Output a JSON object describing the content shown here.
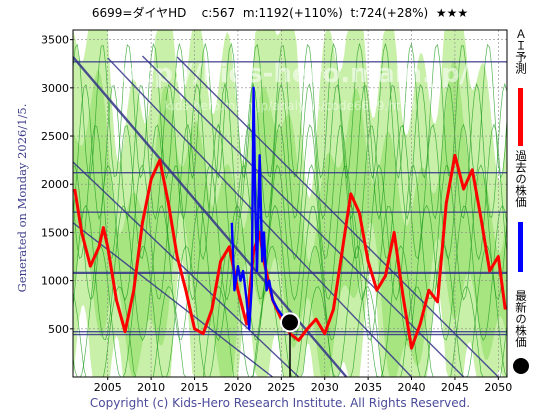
{
  "header": {
    "code_name": "6699=ダイヤHD",
    "c": "c:567",
    "m": "m:1192(+110%)",
    "t": "t:724(+28%)",
    "stars": "★★★"
  },
  "side_label": "Generated on Monday 2026/1/5.",
  "copyright": "Copyright (c) Kids-Hero Research Institute. All Rights Reserved.",
  "watermark": {
    "line1": "http://kids-hero.main.jp/",
    "line2": "kids-hero.main.jp/analysis/code6699.html"
  },
  "legend": [
    {
      "label": "ＡＩ予測",
      "color": "#ff0000"
    },
    {
      "label": "過去の株価",
      "color": "#0000ff"
    },
    {
      "label": "最新の株価",
      "color": "#000000"
    }
  ],
  "colors": {
    "forecast": "#ff0000",
    "past": "#0000ff",
    "latest": "#000000",
    "band_light": "#c8f0a8",
    "band_mid": "#98e070",
    "band_line": "#1a9a1a",
    "trend": "#333388"
  },
  "chart_data": {
    "type": "line",
    "xlim": [
      2001,
      2051
    ],
    "ylim": [
      0,
      3600
    ],
    "x_ticks": [
      "2005",
      "2010",
      "2015",
      "2020",
      "2025",
      "2030",
      "2035",
      "2040",
      "2045",
      "2050"
    ],
    "y_ticks": [
      "500",
      "1000",
      "1500",
      "2000",
      "2500",
      "3000",
      "3500"
    ],
    "grid": true,
    "legend_position": "right",
    "horizontal_levels": [
      3270,
      2120,
      1710,
      1080,
      470,
      440
    ],
    "diagonal_trendlines": [
      {
        "from": [
          2001,
          3320
        ],
        "to": [
          2032.5,
          0
        ]
      },
      {
        "from": [
          2005,
          3310
        ],
        "to": [
          2040,
          0
        ]
      },
      {
        "from": [
          2009,
          3330
        ],
        "to": [
          2046,
          0
        ]
      },
      {
        "from": [
          2013,
          3320
        ],
        "to": [
          2050,
          0
        ]
      },
      {
        "from": [
          2001,
          2230
        ],
        "to": [
          2027,
          0
        ]
      },
      {
        "from": [
          2001,
          1600
        ],
        "to": [
          2024,
          0
        ]
      }
    ],
    "series": [
      {
        "name": "ＡＩ予測",
        "x": [
          2001.2,
          2002,
          2003,
          2004,
          2004.5,
          2005,
          2006,
          2007,
          2008,
          2009,
          2010,
          2011,
          2012,
          2013,
          2014,
          2015,
          2016,
          2017,
          2018,
          2019,
          2020,
          2021,
          2021.8,
          2022.5,
          2023,
          2024,
          2025,
          2026,
          2027,
          2028,
          2029,
          2030,
          2031,
          2032,
          2033,
          2034,
          2035,
          2036,
          2037,
          2038,
          2039,
          2040,
          2041,
          2042,
          2043,
          2044,
          2045,
          2046,
          2047,
          2048,
          2049,
          2050,
          2050.8
        ],
        "y": [
          1950,
          1500,
          1150,
          1350,
          1550,
          1350,
          800,
          470,
          900,
          1600,
          2050,
          2250,
          1800,
          1250,
          900,
          500,
          450,
          700,
          1200,
          1350,
          900,
          550,
          1300,
          1500,
          1200,
          800,
          600,
          450,
          380,
          500,
          600,
          450,
          700,
          1300,
          1900,
          1700,
          1200,
          900,
          1050,
          1500,
          850,
          300,
          550,
          900,
          780,
          1800,
          2300,
          1950,
          2150,
          1650,
          1100,
          1250,
          700
        ]
      },
      {
        "name": "過去の株価",
        "x": [
          2019.3,
          2019.6,
          2020,
          2020.3,
          2020.6,
          2021,
          2021.3,
          2021.6,
          2021.8,
          2022,
          2022.2,
          2022.5,
          2022.8,
          2023,
          2023.3,
          2023.6,
          2024,
          2024.3,
          2024.6,
          2025,
          2025.3,
          2025.6,
          2026
        ],
        "y": [
          1600,
          900,
          1150,
          1000,
          1100,
          800,
          500,
          950,
          3000,
          1800,
          1100,
          2300,
          1200,
          1500,
          900,
          1000,
          800,
          750,
          700,
          650,
          600,
          550,
          567
        ]
      }
    ],
    "latest_point": {
      "x": 2026,
      "y": 567
    }
  }
}
